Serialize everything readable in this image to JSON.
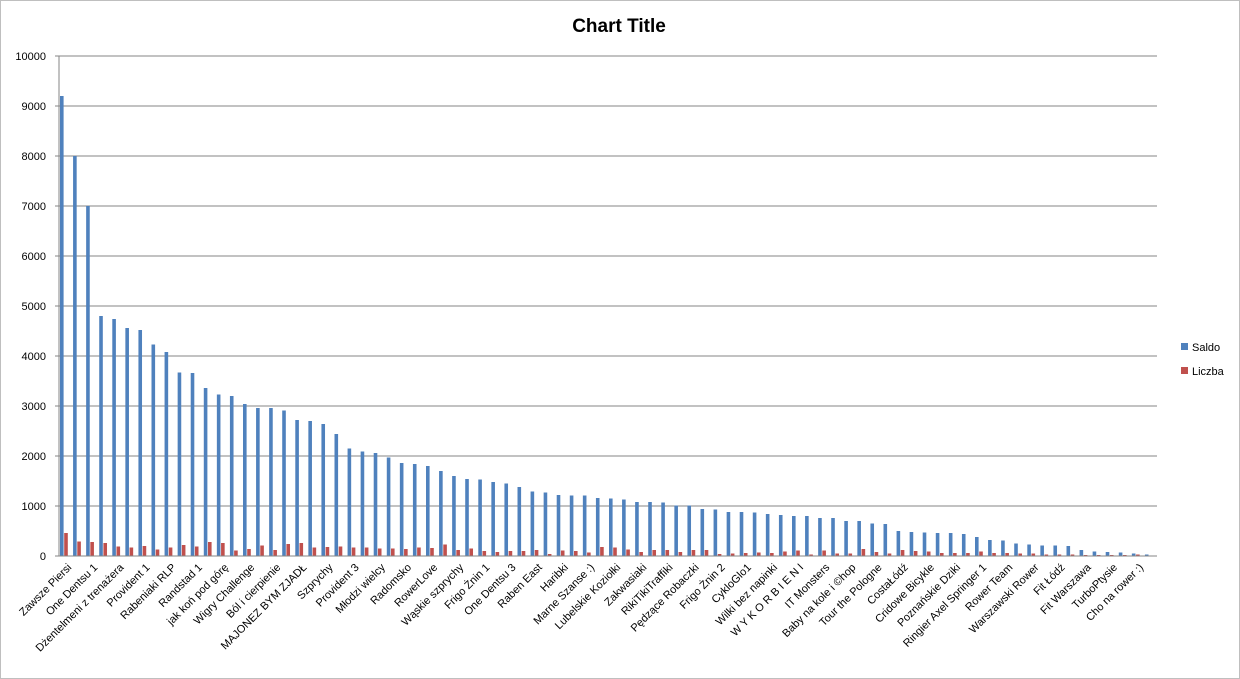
{
  "chart_data": {
    "type": "bar",
    "title": "Chart Title",
    "xlabel": "",
    "ylabel": "",
    "ylim": [
      0,
      10000
    ],
    "yticks": [
      "0",
      "1000",
      "2000",
      "3000",
      "4000",
      "5000",
      "6000",
      "7000",
      "8000",
      "9000",
      "10000"
    ],
    "grid": true,
    "legend_position": "right",
    "colors": {
      "Saldo": "#4f81bd",
      "Liczba": "#c0504d",
      "grid": "#868686"
    },
    "categories": [
      "Zawsze Piersi",
      "",
      "One Dentsu 1",
      "",
      "Dżentelmeni z trenażera",
      "",
      "Provident 1",
      "",
      "Rabeniaki RLP",
      "",
      "Randstad 1",
      "",
      "jak koń pod górę",
      "",
      "Wigry Challenge",
      "",
      "Ból i cierpienie",
      "",
      "MAJONEZ BYM ZJADŁ",
      "",
      "Szprychy",
      "",
      "Provident 3",
      "",
      "Młodzi wielcy",
      "",
      "Radomsko",
      "",
      "RowerLove",
      "",
      "Wąskie szprychy",
      "",
      "Frigo Żnin 1",
      "",
      "One Dentsu 3",
      "",
      "Raben East",
      "",
      "Haribki",
      "",
      "Marne Szanse :)",
      "",
      "Lubelskie Koziołki",
      "",
      "Zakwasiaki",
      "",
      "RikiTikiTraffiki",
      "",
      "Pędzące Robaczki",
      "",
      "Frigo Żnin 2",
      "",
      "CykloGlo1",
      "",
      "Wilki bez napinki",
      "",
      "W Y K O R B I E N I",
      "",
      "IT Monsters",
      "",
      "Baby na kole i ©hop",
      "",
      "Tour the Pologne",
      "",
      "CostaŁódź",
      "",
      "Cridowe Bicykle",
      "",
      "Poznańskie Dziki",
      "",
      "Ringier Axel Springer 1",
      "",
      "Rower Team",
      "",
      "Warszawski Rower",
      "",
      "Fit Łódź",
      "",
      "Fit Warszawa",
      "",
      "TurboPtysie",
      "",
      "Cho na rower :)",
      ""
    ],
    "series": [
      {
        "name": "Saldo",
        "values": [
          9200,
          8000,
          7000,
          4800,
          4740,
          4560,
          4520,
          4230,
          4080,
          3670,
          3660,
          3360,
          3230,
          3200,
          3040,
          2960,
          2960,
          2910,
          2720,
          2700,
          2640,
          2440,
          2150,
          2090,
          2060,
          1970,
          1860,
          1840,
          1800,
          1700,
          1600,
          1540,
          1530,
          1480,
          1450,
          1380,
          1290,
          1270,
          1220,
          1210,
          1210,
          1160,
          1150,
          1130,
          1080,
          1080,
          1070,
          1010,
          1010,
          940,
          930,
          880,
          880,
          870,
          840,
          820,
          800,
          800,
          760,
          760,
          700,
          700,
          650,
          640,
          500,
          480,
          470,
          460,
          460,
          440,
          380,
          320,
          310,
          250,
          230,
          210,
          210,
          200,
          120,
          90,
          80,
          70,
          50,
          30
        ]
      },
      {
        "name": "Liczba",
        "values": [
          460,
          290,
          280,
          260,
          190,
          170,
          200,
          130,
          170,
          220,
          190,
          280,
          260,
          110,
          140,
          210,
          120,
          240,
          260,
          170,
          180,
          190,
          170,
          170,
          150,
          150,
          140,
          170,
          160,
          230,
          120,
          150,
          100,
          80,
          100,
          100,
          120,
          40,
          110,
          100,
          70,
          180,
          170,
          130,
          80,
          120,
          120,
          80,
          120,
          120,
          40,
          50,
          60,
          70,
          60,
          90,
          110,
          30,
          110,
          50,
          50,
          140,
          80,
          50,
          120,
          100,
          90,
          60,
          60,
          60,
          90,
          60,
          60,
          50,
          50,
          30,
          30,
          30,
          20,
          20,
          20,
          20,
          30,
          10
        ]
      }
    ]
  }
}
